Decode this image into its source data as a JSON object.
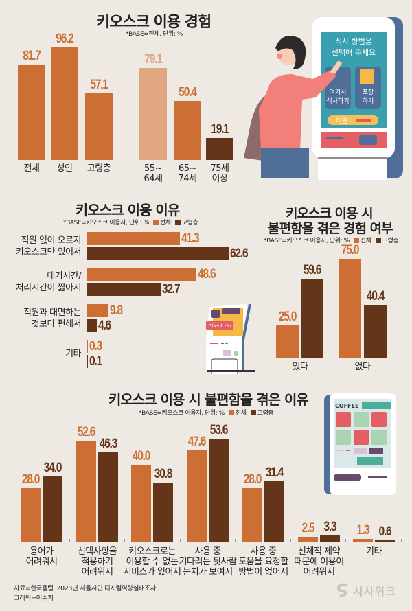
{
  "colors": {
    "background": "#eeeae3",
    "total": "#cd6e34",
    "elderly": "#643519",
    "age_55_64": "#dfa680"
  },
  "section1": {
    "title": "키오스크 이용 경험",
    "note": "*BASE=전체, 단위: %"
  },
  "section2": {
    "title": "키오스크 이용 이유",
    "note": "*BASE=키오스크 이용자, 단위: %",
    "legend": [
      "전체",
      "고령층"
    ]
  },
  "section3": {
    "title_line1": "키오스크 이용 시",
    "title_line2": "불편함을 겪은 경험 여부",
    "note": "*BASE=키오스크 이용자, 단위: %",
    "legend": [
      "전체",
      "고령층"
    ]
  },
  "section4": {
    "title": "키오스크 이용 시 불편함을 겪은 이유",
    "note": "*BASE=키오스크 이용자, 단위: %",
    "legend": [
      "전체",
      "고령층"
    ]
  },
  "illustration": {
    "kiosk_screen_line1": "식사 방법을",
    "kiosk_screen_line2": "선택해 주세요",
    "option1_line1": "여기서",
    "option1_line2": "식사하기",
    "option2_line1": "포장",
    "option2_line2": "하기",
    "next_button": "다음",
    "checkin_label": "Check -In",
    "coffee_label": "COFFEE"
  },
  "footer": {
    "source": "자료=한국갤럽 '2023년 서울시민 디지털역량실태조사'",
    "graphic": "그래픽=이주희",
    "brand": "시사위크"
  },
  "chart_data": [
    {
      "type": "bar",
      "title": "키오스크 이용 경험",
      "subtitle": "*BASE=전체, 단위: %",
      "categories": [
        "전체",
        "성인",
        "고령층",
        "55~64세",
        "65~74세",
        "75세 이상"
      ],
      "values": [
        81.7,
        96.2,
        57.1,
        79.1,
        50.4,
        19.1
      ],
      "labels": [
        "81.7",
        "96.2",
        "57.1",
        "79.1",
        "50.4",
        "19.1"
      ],
      "xlabel": "",
      "ylabel": "%",
      "ylim": [
        0,
        100
      ],
      "grid": false
    },
    {
      "type": "bar",
      "orientation": "horizontal",
      "title": "키오스크 이용 이유",
      "subtitle": "*BASE=키오스크 이용자, 단위: %",
      "categories": [
        "직원 없이 오르지 키오스크만 있어서",
        "대기시간/처리시간이 짧아서",
        "직원과 대면하는 것보다 편해서",
        "기타"
      ],
      "series": [
        {
          "name": "전체",
          "values": [
            41.3,
            48.6,
            9.8,
            0.3
          ],
          "labels": [
            "41.3",
            "48.6",
            "9.8",
            "0.3"
          ]
        },
        {
          "name": "고령층",
          "values": [
            62.6,
            32.7,
            4.6,
            0.1
          ],
          "labels": [
            "62.6",
            "32.7",
            "4.6",
            "0.1"
          ]
        }
      ],
      "legend_position": "top-right",
      "grid": false
    },
    {
      "type": "bar",
      "title": "키오스크 이용 시 불편함을 겪은 경험 여부",
      "subtitle": "*BASE=키오스크 이용자, 단위: %",
      "categories": [
        "있다",
        "없다"
      ],
      "series": [
        {
          "name": "전체",
          "values": [
            25.0,
            75.0
          ],
          "labels": [
            "25.0",
            "75.0"
          ]
        },
        {
          "name": "고령층",
          "values": [
            59.6,
            40.4
          ],
          "labels": [
            "59.6",
            "40.4"
          ]
        }
      ],
      "legend_position": "top",
      "grid": false
    },
    {
      "type": "bar",
      "title": "키오스크 이용 시 불편함을 겪은 이유",
      "subtitle": "*BASE=키오스크 이용자, 단위: %",
      "categories": [
        "용어가 어려워서",
        "선택사항을 적용하기 어려워서",
        "키오스크로는 이용할 수 없는 서비스가 있어서",
        "사용 중 기다리는 뒷사람 눈치가 보여서",
        "사용 중 도움을 요청할 방법이 없어서",
        "신체적 제약 때문에 이용이 어려워서",
        "기타"
      ],
      "series": [
        {
          "name": "전체",
          "values": [
            28.0,
            52.6,
            40.0,
            47.6,
            28.0,
            2.5,
            1.3
          ],
          "labels": [
            "28.0",
            "52.6",
            "40.0",
            "47.6",
            "28.0",
            "2.5",
            "1.3"
          ]
        },
        {
          "name": "고령층",
          "values": [
            34.0,
            46.3,
            30.8,
            53.6,
            31.4,
            3.3,
            0.6
          ],
          "labels": [
            "34.0",
            "46.3",
            "30.8",
            "53.6",
            "31.4",
            "3.3",
            "0.6"
          ]
        }
      ],
      "legend_position": "top-right",
      "grid": false
    }
  ],
  "labels": {
    "s1": [
      "전체",
      "성인",
      "고령층",
      "55~\n64세",
      "65~\n74세",
      "75세\n이상"
    ],
    "s2": [
      "직원 없이 오르지\n키오스크만 있어서",
      "대기시간/\n처리시간이 짧아서",
      "직원과 대면하는\n것보다 편해서",
      "기타"
    ],
    "s3": [
      "있다",
      "없다"
    ],
    "s4": [
      "용어가\n어려워서",
      "선택사항을\n적용하기\n어려워서",
      "키오스크로는\n이용할 수 없는\n서비스가 있어서",
      "사용 중\n기다리는 뒷사람\n눈치가 보여서",
      "사용 중\n도움을 요청할\n방법이 없어서",
      "신체적 제약\n때문에 이용이\n어려워서",
      "기타"
    ]
  }
}
